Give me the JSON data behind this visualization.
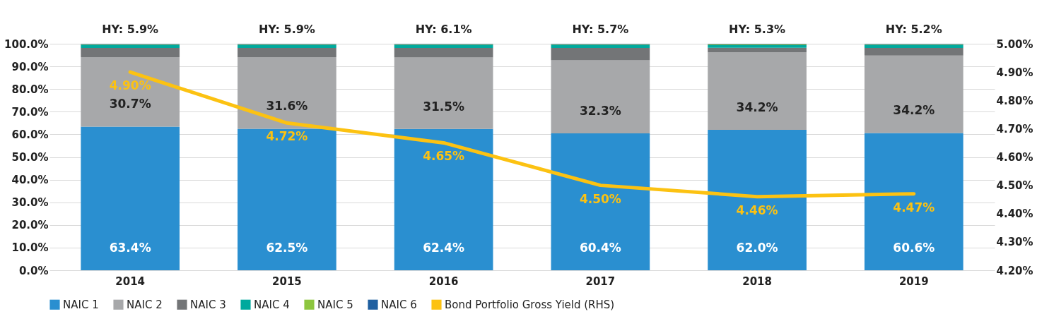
{
  "chart_data": {
    "type": "bar",
    "stacked": true,
    "categories": [
      "2014",
      "2015",
      "2016",
      "2017",
      "2018",
      "2019"
    ],
    "series": [
      {
        "name": "NAIC 1",
        "color": "#2a8fd0",
        "values": [
          63.4,
          62.5,
          62.4,
          60.4,
          62.0,
          60.6
        ],
        "value_labels": [
          "63.4%",
          "62.5%",
          "62.4%",
          "60.4%",
          "62.0%",
          "60.6%"
        ]
      },
      {
        "name": "NAIC 2",
        "color": "#a7a8aa",
        "values": [
          30.7,
          31.6,
          31.5,
          32.3,
          34.2,
          34.2
        ],
        "value_labels": [
          "30.7%",
          "31.6%",
          "31.5%",
          "32.3%",
          "34.2%",
          "34.2%"
        ]
      },
      {
        "name": "NAIC 3",
        "color": "#737577",
        "values": [
          4.0,
          4.0,
          4.2,
          5.4,
          2.0,
          3.3
        ]
      },
      {
        "name": "NAIC 4",
        "color": "#00a99d",
        "values": [
          1.4,
          1.4,
          1.4,
          1.4,
          1.2,
          1.4
        ]
      },
      {
        "name": "NAIC 5",
        "color": "#8dc63f",
        "values": [
          0.3,
          0.3,
          0.3,
          0.3,
          0.3,
          0.3
        ]
      },
      {
        "name": "NAIC 6",
        "color": "#1f5fa0",
        "values": [
          0.2,
          0.2,
          0.2,
          0.2,
          0.2,
          0.2
        ]
      },
      {
        "name": "Bond Portfolio Gross Yield (RHS)",
        "type": "line",
        "axis": "y2",
        "color": "#fcc212",
        "values": [
          4.9,
          4.72,
          4.65,
          4.5,
          4.46,
          4.47
        ],
        "value_labels": [
          "4.90%",
          "4.72%",
          "4.65%",
          "4.50%",
          "4.46%",
          "4.47%"
        ]
      }
    ],
    "ylim": [
      0,
      100
    ],
    "yticks": [
      {
        "value": 0,
        "label": "0.0%"
      },
      {
        "value": 10,
        "label": "10.0%"
      },
      {
        "value": 20,
        "label": "20.0%"
      },
      {
        "value": 30,
        "label": "30.0%"
      },
      {
        "value": 40,
        "label": "40.0%"
      },
      {
        "value": 50,
        "label": "50.0%"
      },
      {
        "value": 60,
        "label": "60.0%"
      },
      {
        "value": 70,
        "label": "70.0%"
      },
      {
        "value": 80,
        "label": "80.0%"
      },
      {
        "value": 90,
        "label": "90.0%"
      },
      {
        "value": 100,
        "label": "100.0%"
      }
    ],
    "y2lim": [
      4.2,
      5.0
    ],
    "y2ticks": [
      {
        "value": 4.2,
        "label": "4.20%"
      },
      {
        "value": 4.3,
        "label": "4.30%"
      },
      {
        "value": 4.4,
        "label": "4.40%"
      },
      {
        "value": 4.5,
        "label": "4.50%"
      },
      {
        "value": 4.6,
        "label": "4.60%"
      },
      {
        "value": 4.7,
        "label": "4.70%"
      },
      {
        "value": 4.8,
        "label": "4.80%"
      },
      {
        "value": 4.9,
        "label": "4.90%"
      },
      {
        "value": 5.0,
        "label": "5.00%"
      }
    ],
    "annotations": [
      "HY: 5.9%",
      "HY: 5.9%",
      "HY: 6.1%",
      "HY: 5.7%",
      "HY: 5.3%",
      "HY: 5.2%"
    ],
    "grid": "y",
    "legend": "bottom",
    "marker": "none",
    "line_style": "solid"
  }
}
